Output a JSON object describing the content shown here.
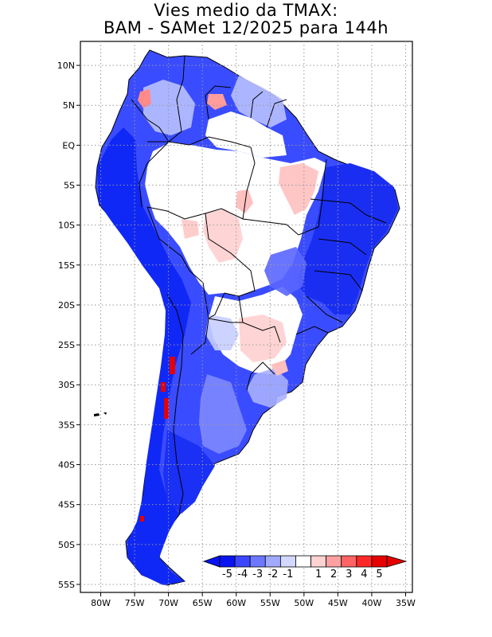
{
  "title": {
    "line1": "Vies medio da TMAX:",
    "line2": "BAM - SAMet 12/2025  para 144h"
  },
  "map": {
    "region": "South America",
    "lat_labels": [
      "10N",
      "5N",
      "EQ",
      "5S",
      "10S",
      "15S",
      "20S",
      "25S",
      "30S",
      "35S",
      "40S",
      "45S",
      "50S",
      "55S"
    ],
    "lat_values": [
      10,
      5,
      0,
      -5,
      -10,
      -15,
      -20,
      -25,
      -30,
      -35,
      -40,
      -45,
      -50,
      -55
    ],
    "lon_labels": [
      "80W",
      "75W",
      "70W",
      "65W",
      "60W",
      "55W",
      "50W",
      "45W",
      "40W",
      "35W"
    ],
    "lon_values": [
      -80,
      -75,
      -70,
      -65,
      -60,
      -55,
      -50,
      -45,
      -40,
      -35
    ],
    "lon_range": [
      -83,
      -34
    ],
    "lat_range": [
      -56,
      13
    ]
  },
  "colorbar": {
    "labels": [
      "-5",
      "-4",
      "-3",
      "-2",
      "-1",
      "1",
      "2",
      "3",
      "4",
      "5"
    ],
    "colors": [
      "#0a14f0",
      "#3c46ff",
      "#6e78ff",
      "#a0aaff",
      "#d2d8ff",
      "#ffffff",
      "#ffd2d2",
      "#ffa0a0",
      "#ff6464",
      "#ff2828",
      "#e60000"
    ]
  },
  "colors": {
    "strong_neg": "#1428f0",
    "mid_neg": "#6e78ff",
    "light_neg": "#b4bcff",
    "neutral": "#ffffff",
    "light_pos": "#ffc8c8",
    "strong_pos": "#e60000",
    "border": "#000000"
  }
}
